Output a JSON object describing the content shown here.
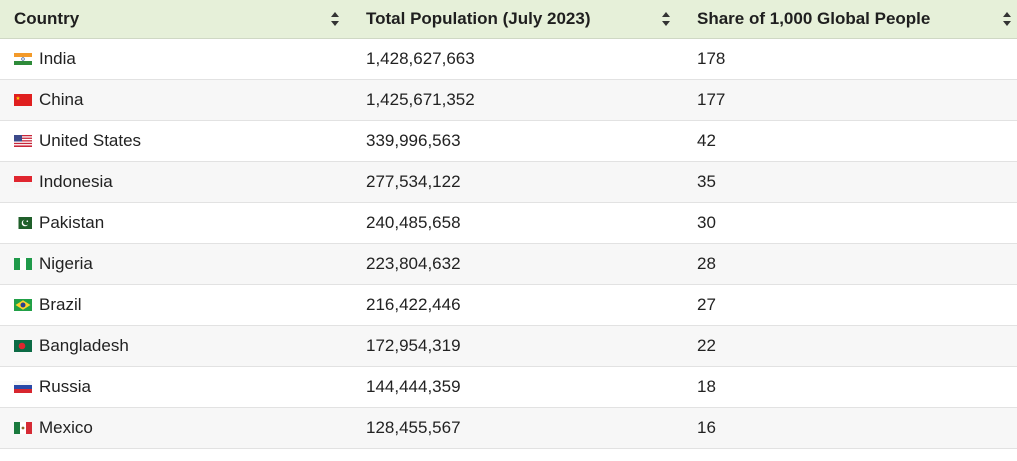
{
  "table": {
    "headers": {
      "country": "Country",
      "population": "Total Population (July 2023)",
      "share": "Share of 1,000 Global People"
    },
    "rows": [
      {
        "country": "India",
        "flag": "india-flag-icon",
        "population": "1,428,627,663",
        "share": "178"
      },
      {
        "country": "China",
        "flag": "china-flag-icon",
        "population": "1,425,671,352",
        "share": "177"
      },
      {
        "country": "United States",
        "flag": "united-states-flag-icon",
        "population": "339,996,563",
        "share": "42"
      },
      {
        "country": "Indonesia",
        "flag": "indonesia-flag-icon",
        "population": "277,534,122",
        "share": "35"
      },
      {
        "country": "Pakistan",
        "flag": "pakistan-flag-icon",
        "population": "240,485,658",
        "share": "30"
      },
      {
        "country": "Nigeria",
        "flag": "nigeria-flag-icon",
        "population": "223,804,632",
        "share": "28"
      },
      {
        "country": "Brazil",
        "flag": "brazil-flag-icon",
        "population": "216,422,446",
        "share": "27"
      },
      {
        "country": "Bangladesh",
        "flag": "bangladesh-flag-icon",
        "population": "172,954,319",
        "share": "22"
      },
      {
        "country": "Russia",
        "flag": "russia-flag-icon",
        "population": "144,444,359",
        "share": "18"
      },
      {
        "country": "Mexico",
        "flag": "mexico-flag-icon",
        "population": "128,455,567",
        "share": "16"
      }
    ]
  },
  "colors": {
    "header_bg": "#e6f0d9",
    "row_alt_bg": "#f7f7f7"
  }
}
